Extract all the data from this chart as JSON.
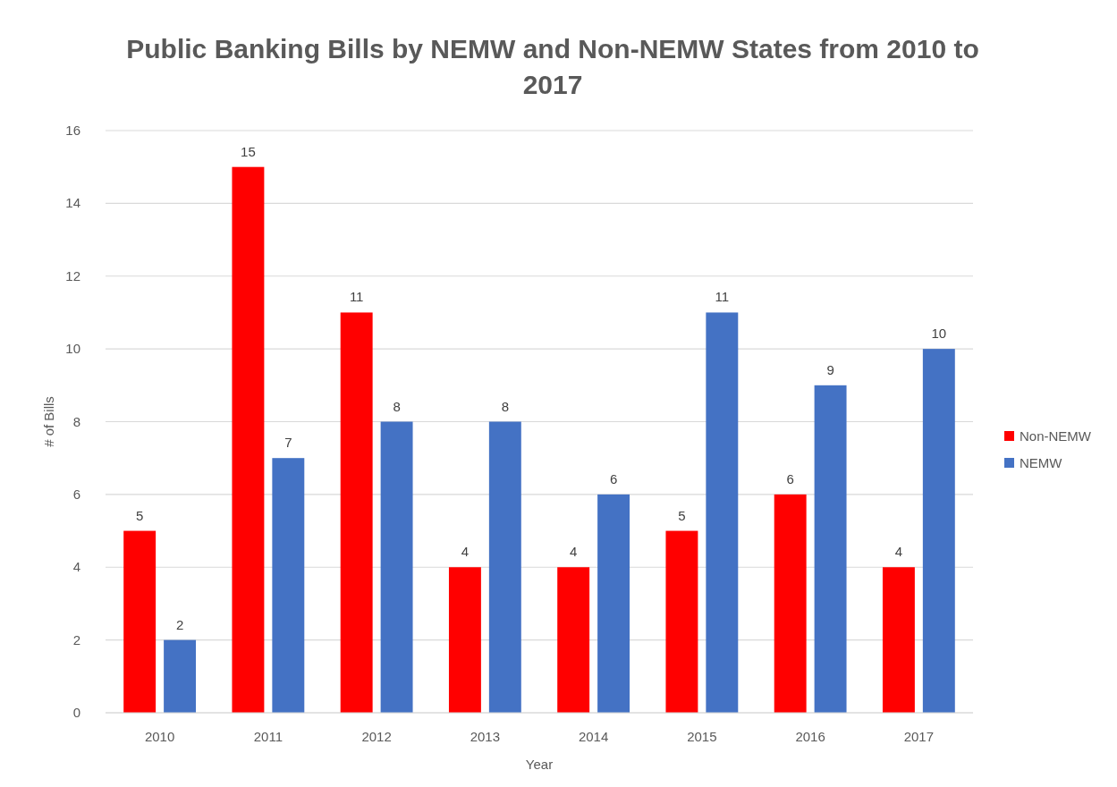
{
  "chart_data": {
    "type": "bar",
    "title": "Public Banking Bills by NEMW and Non-NEMW States from 2010 to 2017",
    "xlabel": "Year",
    "ylabel": "# of Bills",
    "categories": [
      "2010",
      "2011",
      "2012",
      "2013",
      "2014",
      "2015",
      "2016",
      "2017"
    ],
    "series": [
      {
        "name": "Non-NEMW",
        "color": "#ff0000",
        "values": [
          5,
          15,
          11,
          4,
          4,
          5,
          6,
          4
        ]
      },
      {
        "name": "NEMW",
        "color": "#4472c4",
        "values": [
          2,
          7,
          8,
          8,
          6,
          11,
          9,
          10
        ]
      }
    ],
    "ylim": [
      0,
      16
    ],
    "yticks": [
      0,
      2,
      4,
      6,
      8,
      10,
      12,
      14,
      16
    ],
    "grid": "y",
    "legend": "right",
    "data_labels": true
  }
}
